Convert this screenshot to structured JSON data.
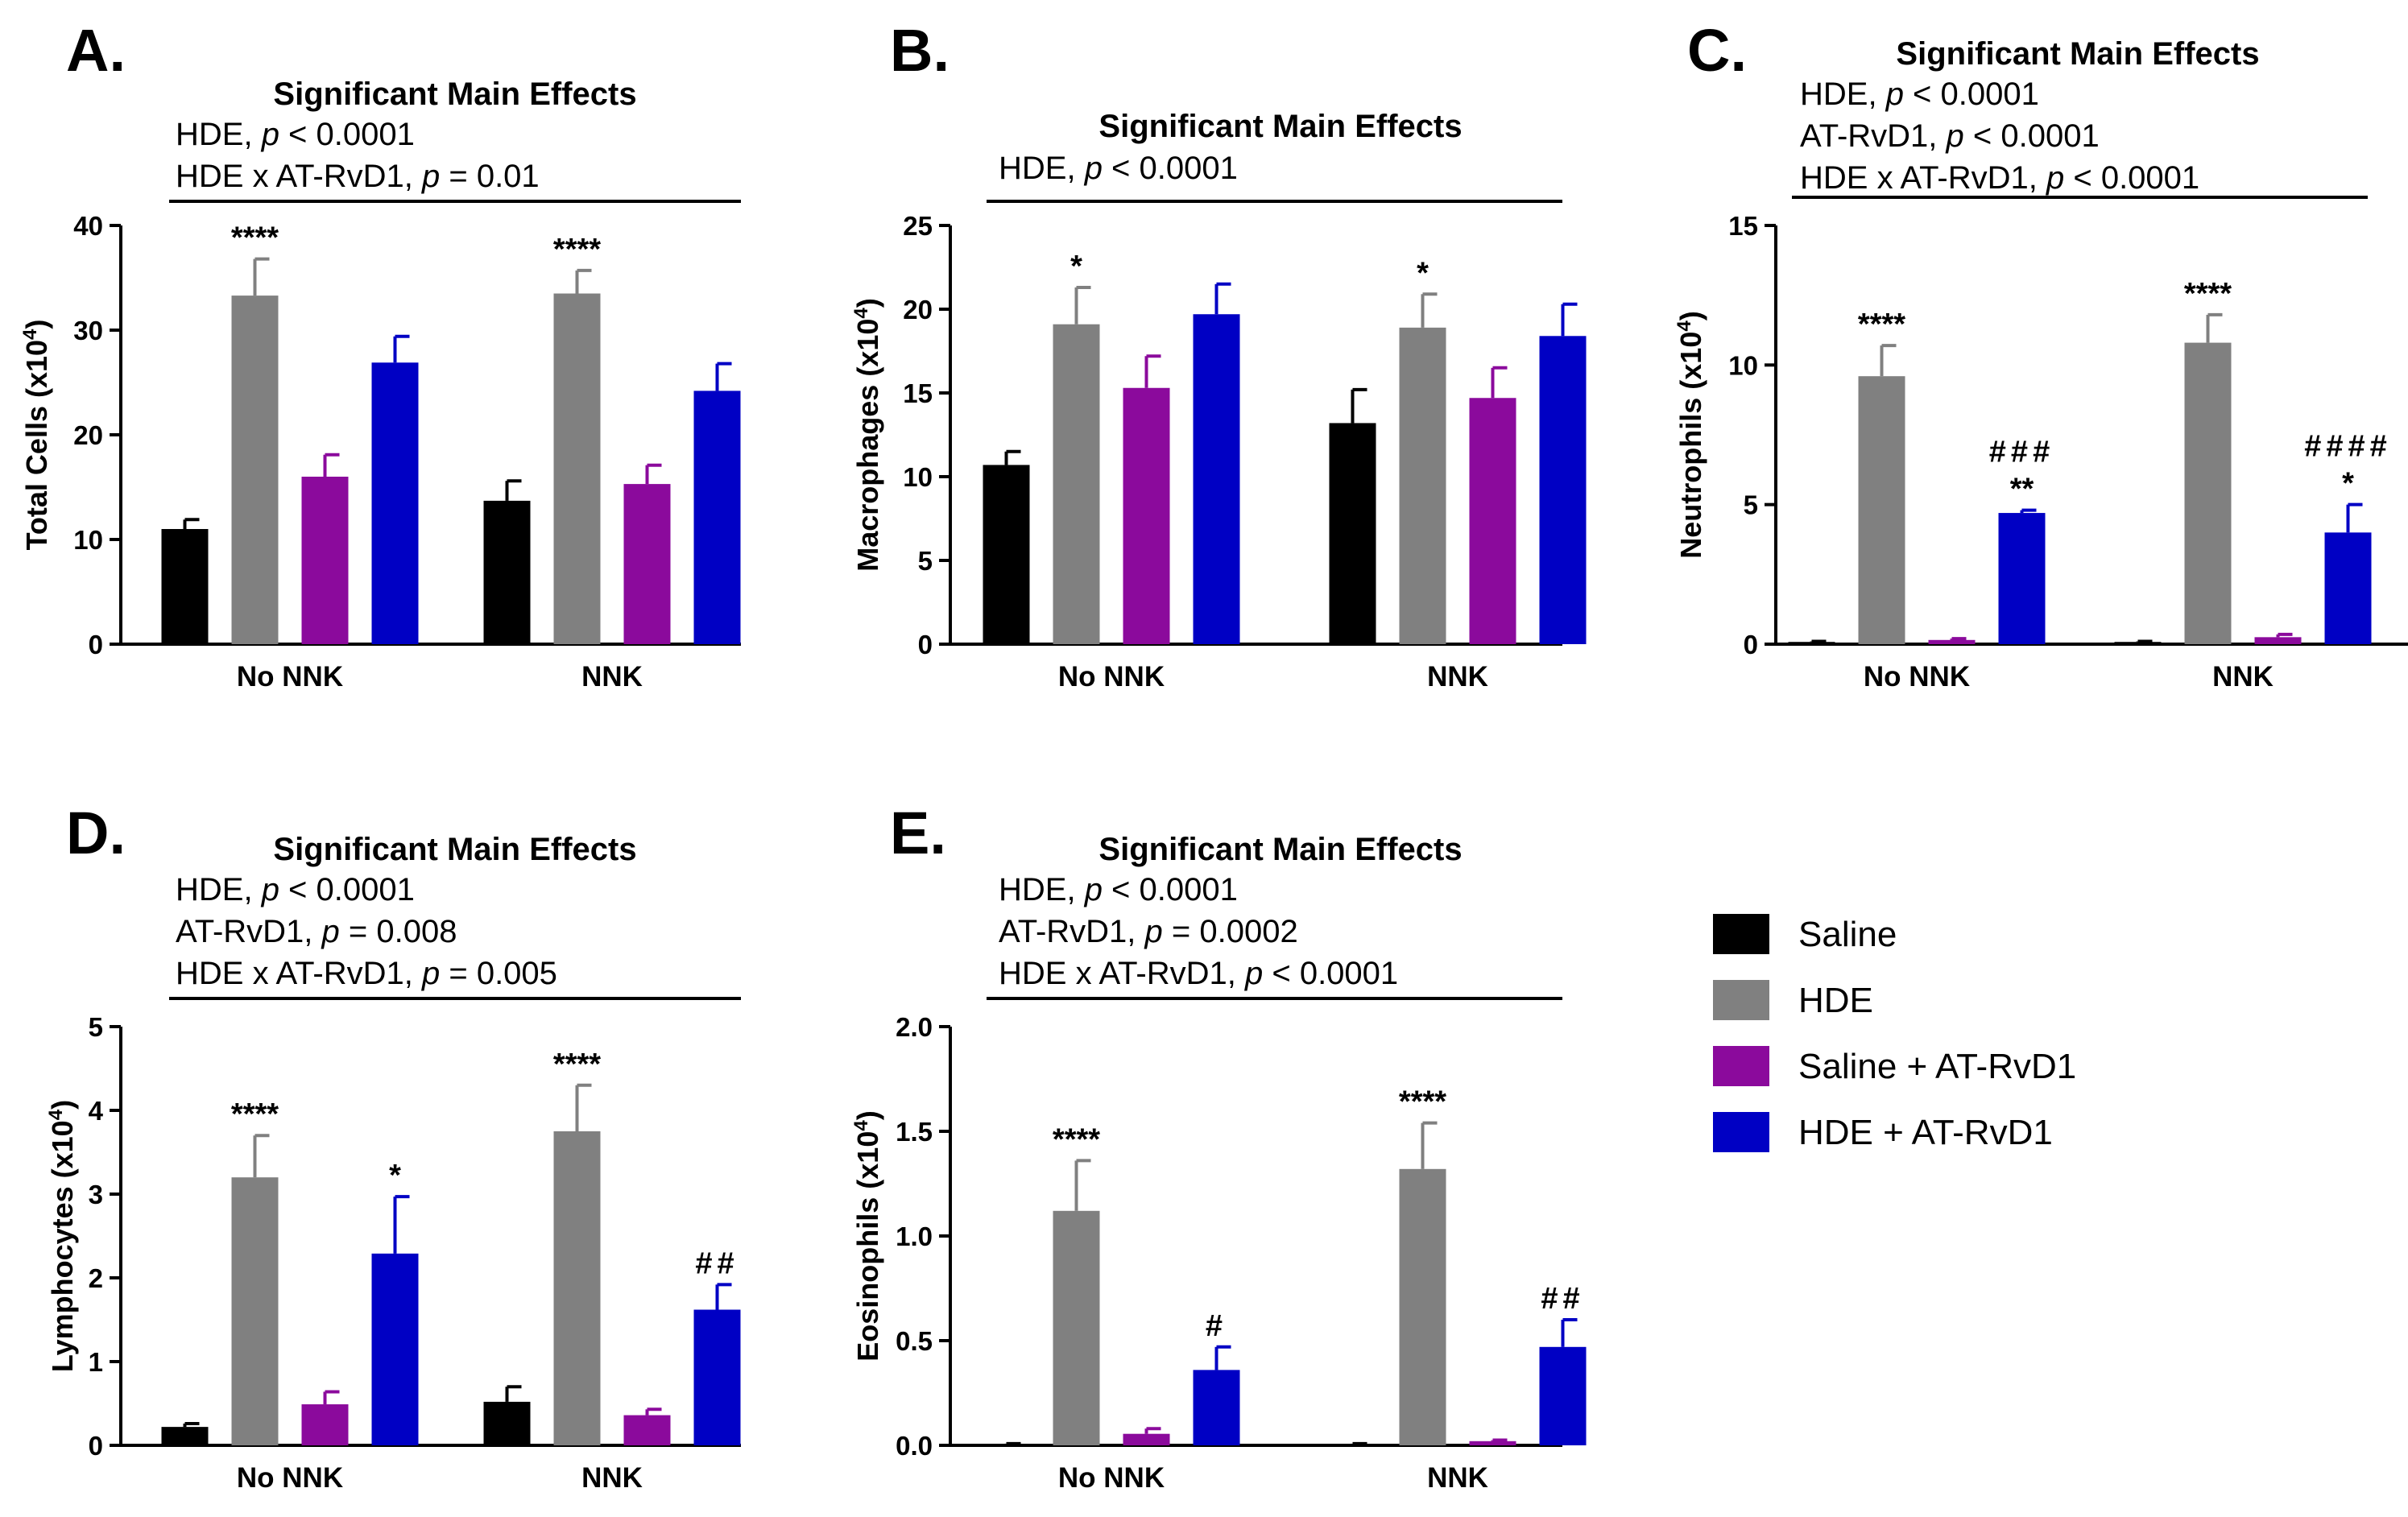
{
  "legend": {
    "series": [
      {
        "name": "Saline",
        "color": "#000000"
      },
      {
        "name": "HDE",
        "color": "#808080"
      },
      {
        "name": "Saline + AT-RvD1",
        "color": "#8B0A9C"
      },
      {
        "name": "HDE + AT-RvD1",
        "color": "#0000C4"
      }
    ]
  },
  "chart_data": [
    {
      "type": "bar",
      "panel": "A.",
      "effects_title": "Significant Main Effects",
      "effects": [
        {
          "name": "HDE",
          "p_label": "p",
          "rel": "< 0.0001"
        },
        {
          "name": "HDE x AT-RvD1",
          "p_label": "p",
          "rel": "= 0.01"
        }
      ],
      "ylabel": "Total Cells (x10",
      "ylabel_sup": "4",
      "ylabel_end": ")",
      "ylim": [
        0,
        40
      ],
      "yticks": [
        0,
        10,
        20,
        30,
        40
      ],
      "ytick_labels": [
        "0",
        "10",
        "20",
        "30",
        "40"
      ],
      "categories": [
        "No NNK",
        "NNK"
      ],
      "series": [
        {
          "name": "Saline",
          "color": "#000000",
          "values": [
            11.0,
            13.7
          ],
          "errors": [
            0.9,
            1.9
          ],
          "sig": [
            "",
            ""
          ]
        },
        {
          "name": "HDE",
          "color": "#808080",
          "values": [
            33.3,
            33.5
          ],
          "errors": [
            3.5,
            2.2
          ],
          "sig": [
            "****",
            "****"
          ]
        },
        {
          "name": "Saline + AT-RvD1",
          "color": "#8B0A9C",
          "values": [
            16.0,
            15.3
          ],
          "errors": [
            2.1,
            1.8
          ],
          "sig": [
            "",
            ""
          ]
        },
        {
          "name": "HDE + AT-RvD1",
          "color": "#0000C4",
          "values": [
            26.9,
            24.2
          ],
          "errors": [
            2.5,
            2.6
          ],
          "sig": [
            "",
            ""
          ]
        }
      ]
    },
    {
      "type": "bar",
      "panel": "B.",
      "effects_title": "Significant Main Effects",
      "effects": [
        {
          "name": "HDE",
          "p_label": "p",
          "rel": "< 0.0001"
        }
      ],
      "ylabel": "Macrophages (x10",
      "ylabel_sup": "4",
      "ylabel_end": ")",
      "ylim": [
        0,
        25
      ],
      "yticks": [
        0,
        5,
        10,
        15,
        20,
        25
      ],
      "ytick_labels": [
        "0",
        "5",
        "10",
        "15",
        "20",
        "25"
      ],
      "categories": [
        "No NNK",
        "NNK"
      ],
      "series": [
        {
          "name": "Saline",
          "color": "#000000",
          "values": [
            10.7,
            13.2
          ],
          "errors": [
            0.8,
            2.0
          ],
          "sig": [
            "",
            ""
          ]
        },
        {
          "name": "HDE",
          "color": "#808080",
          "values": [
            19.1,
            18.9
          ],
          "errors": [
            2.2,
            2.0
          ],
          "sig": [
            "*",
            "*"
          ]
        },
        {
          "name": "Saline + AT-RvD1",
          "color": "#8B0A9C",
          "values": [
            15.3,
            14.7
          ],
          "errors": [
            1.9,
            1.8
          ],
          "sig": [
            "",
            ""
          ]
        },
        {
          "name": "HDE + AT-RvD1",
          "color": "#0000C4",
          "values": [
            19.7,
            18.4
          ],
          "errors": [
            1.8,
            1.9
          ],
          "sig": [
            "",
            ""
          ]
        }
      ]
    },
    {
      "type": "bar",
      "panel": "C.",
      "effects_title": "Significant Main Effects",
      "effects": [
        {
          "name": "HDE",
          "p_label": "p",
          "rel": "< 0.0001"
        },
        {
          "name": "AT-RvD1",
          "p_label": "p",
          "rel": "< 0.0001"
        },
        {
          "name": "HDE x AT-RvD1",
          "p_label": "p",
          "rel": "< 0.0001"
        }
      ],
      "ylabel": "Neutrophils (x10",
      "ylabel_sup": "4",
      "ylabel_end": ")",
      "ylim": [
        0,
        15
      ],
      "yticks": [
        0,
        5,
        10,
        15
      ],
      "ytick_labels": [
        "0",
        "5",
        "10",
        "15"
      ],
      "categories": [
        "No NNK",
        "NNK"
      ],
      "series": [
        {
          "name": "Saline",
          "color": "#000000",
          "values": [
            0.08,
            0.08
          ],
          "errors": [
            0.02,
            0.02
          ],
          "sig": [
            "",
            ""
          ]
        },
        {
          "name": "HDE",
          "color": "#808080",
          "values": [
            9.6,
            10.8
          ],
          "errors": [
            1.1,
            1.0
          ],
          "sig": [
            "****",
            "****"
          ]
        },
        {
          "name": "Saline + AT-RvD1",
          "color": "#8B0A9C",
          "values": [
            0.15,
            0.25
          ],
          "errors": [
            0.05,
            0.1
          ],
          "sig": [
            "",
            ""
          ]
        },
        {
          "name": "HDE + AT-RvD1",
          "color": "#0000C4",
          "values": [
            4.7,
            4.0
          ],
          "errors": [
            0.1,
            1.0
          ],
          "sig": [
            "** ###",
            "* ####"
          ]
        }
      ]
    },
    {
      "type": "bar",
      "panel": "D.",
      "effects_title": "Significant Main Effects",
      "effects": [
        {
          "name": "HDE",
          "p_label": "p",
          "rel": "< 0.0001"
        },
        {
          "name": "AT-RvD1",
          "p_label": "p",
          "rel": "= 0.008"
        },
        {
          "name": "HDE x AT-RvD1",
          "p_label": "p",
          "rel": "= 0.005"
        }
      ],
      "ylabel": "Lymphocytes (x10",
      "ylabel_sup": "4",
      "ylabel_end": ")",
      "ylim": [
        0,
        5
      ],
      "yticks": [
        0,
        1,
        2,
        3,
        4,
        5
      ],
      "ytick_labels": [
        "0",
        "1",
        "2",
        "3",
        "4",
        "5"
      ],
      "categories": [
        "No NNK",
        "NNK"
      ],
      "series": [
        {
          "name": "Saline",
          "color": "#000000",
          "values": [
            0.22,
            0.52
          ],
          "errors": [
            0.04,
            0.18
          ],
          "sig": [
            "",
            ""
          ]
        },
        {
          "name": "HDE",
          "color": "#808080",
          "values": [
            3.2,
            3.75
          ],
          "errors": [
            0.5,
            0.55
          ],
          "sig": [
            "****",
            "****"
          ]
        },
        {
          "name": "Saline + AT-RvD1",
          "color": "#8B0A9C",
          "values": [
            0.49,
            0.36
          ],
          "errors": [
            0.15,
            0.07
          ],
          "sig": [
            "",
            ""
          ]
        },
        {
          "name": "HDE + AT-RvD1",
          "color": "#0000C4",
          "values": [
            2.29,
            1.62
          ],
          "errors": [
            0.68,
            0.3
          ],
          "sig": [
            "*",
            "##"
          ]
        }
      ]
    },
    {
      "type": "bar",
      "panel": "E.",
      "effects_title": "Significant Main Effects",
      "effects": [
        {
          "name": "HDE",
          "p_label": "p",
          "rel": "< 0.0001"
        },
        {
          "name": "AT-RvD1",
          "p_label": "p",
          "rel": "= 0.0002"
        },
        {
          "name": "HDE x AT-RvD1",
          "p_label": "p",
          "rel": "< 0.0001"
        }
      ],
      "ylabel": "Eosinophils (x10",
      "ylabel_sup": "4",
      "ylabel_end": ")",
      "ylim": [
        0,
        2.0
      ],
      "yticks": [
        0,
        0.5,
        1.0,
        1.5,
        2.0
      ],
      "ytick_labels": [
        "0.0",
        "0.5",
        "1.0",
        "1.5",
        "2.0"
      ],
      "categories": [
        "No NNK",
        "NNK"
      ],
      "series": [
        {
          "name": "Saline",
          "color": "#000000",
          "values": [
            0.005,
            0.005
          ],
          "errors": [
            0.003,
            0.003
          ],
          "sig": [
            "",
            ""
          ]
        },
        {
          "name": "HDE",
          "color": "#808080",
          "values": [
            1.12,
            1.32
          ],
          "errors": [
            0.24,
            0.22
          ],
          "sig": [
            "****",
            "****"
          ]
        },
        {
          "name": "Saline + AT-RvD1",
          "color": "#8B0A9C",
          "values": [
            0.055,
            0.02
          ],
          "errors": [
            0.025,
            0.005
          ],
          "sig": [
            "",
            ""
          ]
        },
        {
          "name": "HDE + AT-RvD1",
          "color": "#0000C4",
          "values": [
            0.36,
            0.47
          ],
          "errors": [
            0.11,
            0.13
          ],
          "sig": [
            "#",
            "##"
          ]
        }
      ]
    }
  ]
}
